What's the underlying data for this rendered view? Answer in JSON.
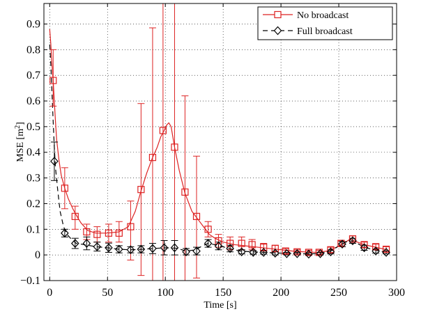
{
  "chart_data": {
    "type": "line",
    "xlabel": "Time [s]",
    "ylabel_main": "MSE [m",
    "ylabel_sup": "2",
    "ylabel_close": "]",
    "xlim": [
      -5,
      300
    ],
    "ylim": [
      -0.1,
      0.98
    ],
    "xticks": [
      0,
      50,
      100,
      150,
      200,
      250,
      300
    ],
    "yticks": [
      -0.1,
      0,
      0.1,
      0.2,
      0.3,
      0.4,
      0.5,
      0.6,
      0.7,
      0.8,
      0.9
    ],
    "grid": true,
    "legend_position": "top-right",
    "colors": {
      "no_broadcast": "#dd2222",
      "full_broadcast": "#000000"
    },
    "series": [
      {
        "name": "No broadcast",
        "marker": "square",
        "line": "solid",
        "color": "#dd2222",
        "curve": [
          [
            0,
            0.88
          ],
          [
            1,
            0.82
          ],
          [
            2,
            0.74
          ],
          [
            3,
            0.68
          ],
          [
            4,
            0.6
          ],
          [
            5,
            0.52
          ],
          [
            6,
            0.45
          ],
          [
            8,
            0.37
          ],
          [
            10,
            0.31
          ],
          [
            13,
            0.26
          ],
          [
            16,
            0.22
          ],
          [
            20,
            0.18
          ],
          [
            23,
            0.155
          ],
          [
            27,
            0.125
          ],
          [
            33,
            0.095
          ],
          [
            40,
            0.085
          ],
          [
            50,
            0.085
          ],
          [
            60,
            0.09
          ],
          [
            68,
            0.11
          ],
          [
            74,
            0.17
          ],
          [
            79,
            0.25
          ],
          [
            84,
            0.32
          ],
          [
            89,
            0.38
          ],
          [
            93,
            0.42
          ],
          [
            96,
            0.46
          ],
          [
            99,
            0.485
          ],
          [
            101,
            0.505
          ],
          [
            103,
            0.515
          ],
          [
            105,
            0.5
          ],
          [
            108,
            0.42
          ],
          [
            112,
            0.33
          ],
          [
            117,
            0.24
          ],
          [
            123,
            0.17
          ],
          [
            128,
            0.14
          ],
          [
            133,
            0.11
          ],
          [
            138,
            0.08
          ],
          [
            143,
            0.065
          ],
          [
            150,
            0.05
          ],
          [
            160,
            0.04
          ],
          [
            170,
            0.035
          ],
          [
            180,
            0.03
          ],
          [
            190,
            0.025
          ],
          [
            200,
            0.02
          ],
          [
            210,
            0.015
          ],
          [
            220,
            0.012
          ],
          [
            230,
            0.01
          ],
          [
            240,
            0.015
          ],
          [
            248,
            0.03
          ],
          [
            254,
            0.045
          ],
          [
            260,
            0.062
          ],
          [
            266,
            0.05
          ],
          [
            272,
            0.04
          ],
          [
            280,
            0.032
          ],
          [
            290,
            0.022
          ]
        ],
        "points": [
          {
            "x": 3,
            "y": 0.68,
            "lo": 0.58,
            "hi": 0.8
          },
          {
            "x": 13,
            "y": 0.26,
            "lo": 0.18,
            "hi": 0.34
          },
          {
            "x": 22,
            "y": 0.15,
            "lo": 0.1,
            "hi": 0.19
          },
          {
            "x": 32,
            "y": 0.09,
            "lo": 0.06,
            "hi": 0.12
          },
          {
            "x": 41,
            "y": 0.08,
            "lo": 0.05,
            "hi": 0.11
          },
          {
            "x": 51,
            "y": 0.085,
            "lo": 0.05,
            "hi": 0.12
          },
          {
            "x": 60,
            "y": 0.085,
            "lo": 0.05,
            "hi": 0.13
          },
          {
            "x": 70,
            "y": 0.11,
            "lo": -0.02,
            "hi": 0.21
          },
          {
            "x": 79,
            "y": 0.255,
            "lo": -0.08,
            "hi": 0.59
          },
          {
            "x": 89,
            "y": 0.38,
            "lo": -0.12,
            "hi": 0.885
          },
          {
            "x": 98,
            "y": 0.485,
            "lo": -0.1,
            "hi": 0.98
          },
          {
            "x": 108,
            "y": 0.42,
            "lo": -0.1,
            "hi": 0.98
          },
          {
            "x": 117,
            "y": 0.245,
            "lo": -0.1,
            "hi": 0.62
          },
          {
            "x": 127,
            "y": 0.15,
            "lo": -0.09,
            "hi": 0.385
          },
          {
            "x": 137,
            "y": 0.1,
            "lo": 0.07,
            "hi": 0.13
          },
          {
            "x": 146,
            "y": 0.055,
            "lo": 0.03,
            "hi": 0.08
          },
          {
            "x": 156,
            "y": 0.045,
            "lo": 0.02,
            "hi": 0.07
          },
          {
            "x": 166,
            "y": 0.045,
            "lo": 0.02,
            "hi": 0.07
          },
          {
            "x": 175,
            "y": 0.04,
            "lo": 0.02,
            "hi": 0.06
          },
          {
            "x": 185,
            "y": 0.03,
            "lo": 0.015,
            "hi": 0.045
          },
          {
            "x": 195,
            "y": 0.025,
            "lo": 0.012,
            "hi": 0.038
          },
          {
            "x": 204,
            "y": 0.015,
            "lo": 0.005,
            "hi": 0.025
          },
          {
            "x": 214,
            "y": 0.012,
            "lo": 0.004,
            "hi": 0.02
          },
          {
            "x": 224,
            "y": 0.01,
            "lo": 0.002,
            "hi": 0.018
          },
          {
            "x": 233,
            "y": 0.01,
            "lo": 0.002,
            "hi": 0.018
          },
          {
            "x": 243,
            "y": 0.02,
            "lo": 0.01,
            "hi": 0.03
          },
          {
            "x": 252,
            "y": 0.045,
            "lo": 0.035,
            "hi": 0.055
          },
          {
            "x": 262,
            "y": 0.062,
            "lo": 0.05,
            "hi": 0.075
          },
          {
            "x": 272,
            "y": 0.04,
            "lo": 0.03,
            "hi": 0.05
          },
          {
            "x": 282,
            "y": 0.032,
            "lo": 0.022,
            "hi": 0.042
          },
          {
            "x": 291,
            "y": 0.022,
            "lo": 0.012,
            "hi": 0.032
          }
        ]
      },
      {
        "name": "Full broadcast",
        "marker": "diamond",
        "line": "dashed",
        "color": "#000000",
        "curve": [
          [
            0,
            0.82
          ],
          [
            1,
            0.74
          ],
          [
            2,
            0.63
          ],
          [
            3,
            0.52
          ],
          [
            4,
            0.42
          ],
          [
            5,
            0.34
          ],
          [
            7,
            0.25
          ],
          [
            9,
            0.17
          ],
          [
            12,
            0.11
          ],
          [
            15,
            0.08
          ],
          [
            19,
            0.06
          ],
          [
            23,
            0.045
          ],
          [
            30,
            0.04
          ],
          [
            40,
            0.032
          ],
          [
            50,
            0.028
          ],
          [
            60,
            0.022
          ],
          [
            70,
            0.02
          ],
          [
            80,
            0.022
          ],
          [
            90,
            0.025
          ],
          [
            100,
            0.028
          ],
          [
            110,
            0.026
          ],
          [
            118,
            0.015
          ],
          [
            126,
            0.02
          ],
          [
            132,
            0.035
          ],
          [
            137,
            0.045
          ],
          [
            145,
            0.038
          ],
          [
            155,
            0.025
          ],
          [
            165,
            0.015
          ],
          [
            175,
            0.012
          ],
          [
            185,
            0.01
          ],
          [
            195,
            0.008
          ],
          [
            205,
            0.006
          ],
          [
            215,
            0.005
          ],
          [
            225,
            0.004
          ],
          [
            235,
            0.006
          ],
          [
            243,
            0.015
          ],
          [
            250,
            0.035
          ],
          [
            256,
            0.05
          ],
          [
            261,
            0.055
          ],
          [
            266,
            0.045
          ],
          [
            272,
            0.03
          ],
          [
            282,
            0.018
          ],
          [
            291,
            0.01
          ]
        ],
        "points": [
          {
            "x": 4,
            "y": 0.365,
            "lo": 0.29,
            "hi": 0.44
          },
          {
            "x": 13,
            "y": 0.085,
            "lo": 0.07,
            "hi": 0.1
          },
          {
            "x": 22,
            "y": 0.045,
            "lo": 0.025,
            "hi": 0.065
          },
          {
            "x": 32,
            "y": 0.045,
            "lo": 0.02,
            "hi": 0.07
          },
          {
            "x": 41,
            "y": 0.032,
            "lo": 0.015,
            "hi": 0.05
          },
          {
            "x": 51,
            "y": 0.028,
            "lo": 0.01,
            "hi": 0.046
          },
          {
            "x": 60,
            "y": 0.022,
            "lo": 0.008,
            "hi": 0.036
          },
          {
            "x": 70,
            "y": 0.02,
            "lo": 0.008,
            "hi": 0.032
          },
          {
            "x": 79,
            "y": 0.022,
            "lo": 0.008,
            "hi": 0.036
          },
          {
            "x": 89,
            "y": 0.025,
            "lo": 0.005,
            "hi": 0.045
          },
          {
            "x": 99,
            "y": 0.028,
            "lo": 0.0,
            "hi": 0.056
          },
          {
            "x": 108,
            "y": 0.028,
            "lo": 0.0,
            "hi": 0.056
          },
          {
            "x": 118,
            "y": 0.012,
            "lo": 0.0,
            "hi": 0.025
          },
          {
            "x": 127,
            "y": 0.015,
            "lo": 0.0,
            "hi": 0.03
          },
          {
            "x": 137,
            "y": 0.045,
            "lo": 0.03,
            "hi": 0.06
          },
          {
            "x": 146,
            "y": 0.035,
            "lo": 0.02,
            "hi": 0.05
          },
          {
            "x": 156,
            "y": 0.025,
            "lo": 0.012,
            "hi": 0.038
          },
          {
            "x": 166,
            "y": 0.012,
            "lo": 0.004,
            "hi": 0.02
          },
          {
            "x": 176,
            "y": 0.01,
            "lo": 0.003,
            "hi": 0.017
          },
          {
            "x": 185,
            "y": 0.01,
            "lo": 0.003,
            "hi": 0.017
          },
          {
            "x": 195,
            "y": 0.007,
            "lo": 0.0,
            "hi": 0.014
          },
          {
            "x": 205,
            "y": 0.005,
            "lo": 0.0,
            "hi": 0.01
          },
          {
            "x": 214,
            "y": 0.005,
            "lo": 0.0,
            "hi": 0.01
          },
          {
            "x": 224,
            "y": 0.003,
            "lo": 0.0,
            "hi": 0.008
          },
          {
            "x": 234,
            "y": 0.005,
            "lo": 0.0,
            "hi": 0.01
          },
          {
            "x": 243,
            "y": 0.012,
            "lo": 0.004,
            "hi": 0.02
          },
          {
            "x": 253,
            "y": 0.042,
            "lo": 0.032,
            "hi": 0.052
          },
          {
            "x": 262,
            "y": 0.055,
            "lo": 0.045,
            "hi": 0.065
          },
          {
            "x": 272,
            "y": 0.028,
            "lo": 0.018,
            "hi": 0.038
          },
          {
            "x": 282,
            "y": 0.015,
            "lo": 0.007,
            "hi": 0.023
          },
          {
            "x": 291,
            "y": 0.01,
            "lo": 0.004,
            "hi": 0.016
          }
        ]
      }
    ]
  }
}
